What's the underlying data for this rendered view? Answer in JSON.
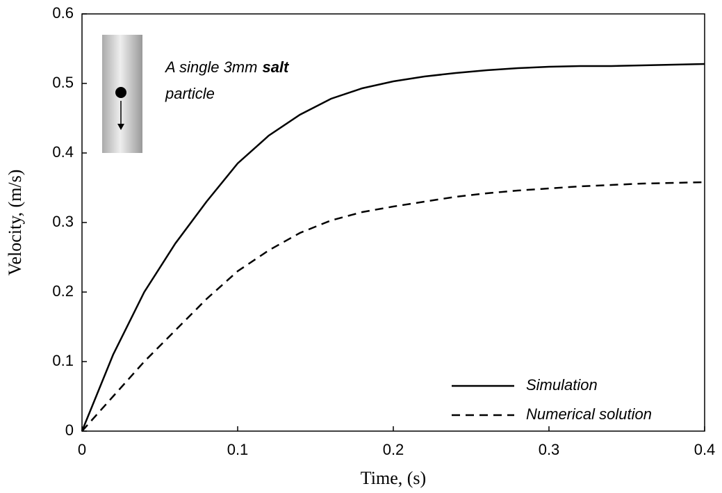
{
  "chart_data": {
    "type": "line",
    "xlabel": "Time, (s)",
    "ylabel": "Velocity, (m/s)",
    "annotation": [
      "A single 3mm",
      "salt",
      "particle"
    ],
    "x": [
      0,
      0.02,
      0.04,
      0.06,
      0.08,
      0.1,
      0.12,
      0.14,
      0.16,
      0.18,
      0.2,
      0.22,
      0.24,
      0.26,
      0.28,
      0.3,
      0.32,
      0.34,
      0.36,
      0.38,
      0.4
    ],
    "series": [
      {
        "name": "Simulation",
        "color": "#000000",
        "dash": false,
        "values": [
          0,
          0.11,
          0.2,
          0.27,
          0.33,
          0.385,
          0.425,
          0.455,
          0.478,
          0.493,
          0.503,
          0.51,
          0.515,
          0.519,
          0.522,
          0.524,
          0.525,
          0.525,
          0.526,
          0.527,
          0.528
        ]
      },
      {
        "name": "Numerical solution",
        "color": "#000000",
        "dash": true,
        "values": [
          0,
          0.05,
          0.1,
          0.145,
          0.19,
          0.23,
          0.26,
          0.285,
          0.303,
          0.315,
          0.323,
          0.33,
          0.337,
          0.342,
          0.346,
          0.349,
          0.352,
          0.354,
          0.356,
          0.357,
          0.358
        ]
      }
    ],
    "xlim": [
      0,
      0.4
    ],
    "xticks": [
      0,
      0.1,
      0.2,
      0.3,
      0.4
    ],
    "ylim": [
      0,
      0.6
    ],
    "yticks": [
      0,
      0.1,
      0.2,
      0.3,
      0.4,
      0.5,
      0.6
    ],
    "legend": "lower right"
  }
}
